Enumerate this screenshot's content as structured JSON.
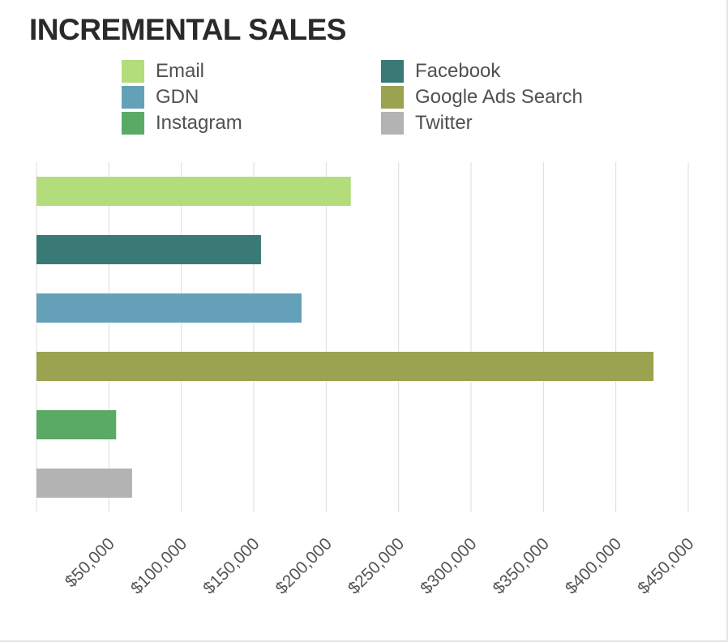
{
  "chart_data": {
    "type": "bar",
    "orientation": "horizontal",
    "title": "INCREMENTAL SALES",
    "categories": [
      "Email",
      "Facebook",
      "GDN",
      "Google Ads Search",
      "Instagram",
      "Twitter"
    ],
    "values": [
      217000,
      155000,
      183000,
      426000,
      55000,
      66000
    ],
    "colors": [
      "#b3dc7a",
      "#3a7a76",
      "#64a1b8",
      "#9ba350",
      "#5aaa65",
      "#b3b3b3"
    ],
    "legend_order": [
      "Email",
      "Facebook",
      "GDN",
      "Google Ads Search",
      "Instagram",
      "Twitter"
    ],
    "legend_position": "top",
    "xlim": [
      0,
      450000
    ],
    "ticks": [
      50000,
      100000,
      150000,
      200000,
      250000,
      300000,
      350000,
      400000,
      450000
    ],
    "tick_labels": [
      "$50,000",
      "$100,000",
      "$150,000",
      "$200,000",
      "$250,000",
      "$300,000",
      "$350,000",
      "$400,000",
      "$450,000"
    ],
    "grid": true,
    "xlabel": "",
    "ylabel": ""
  },
  "colors": {
    "grid": "#dcdcdc",
    "tick_text": "#555555",
    "title": "#2a2a2a"
  }
}
